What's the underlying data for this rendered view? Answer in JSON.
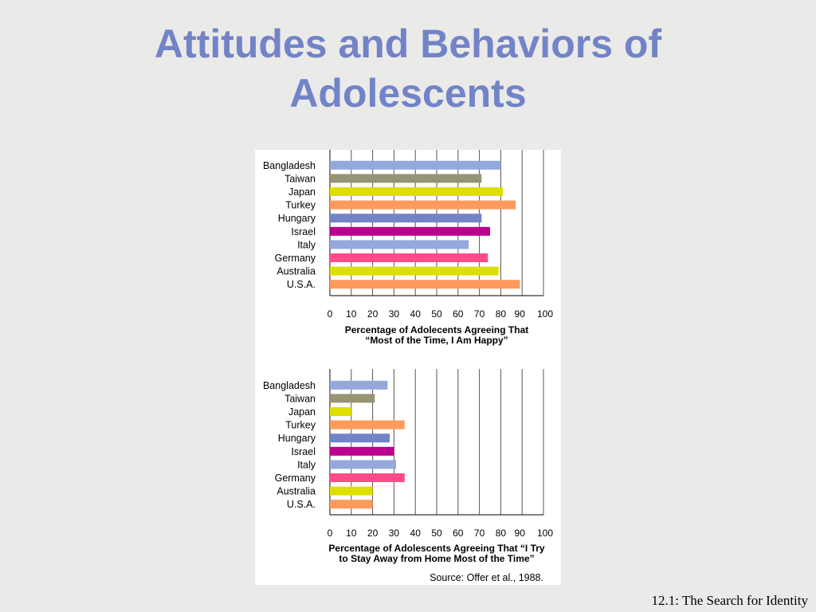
{
  "slide": {
    "title_line1": "Attitudes and Behaviors of",
    "title_line2": "Adolescents",
    "footer": "12.1: The Search for Identity"
  },
  "chart_data": [
    {
      "type": "bar",
      "orientation": "horizontal",
      "categories": [
        "Bangladesh",
        "Taiwan",
        "Japan",
        "Turkey",
        "Hungary",
        "Israel",
        "Italy",
        "Germany",
        "Australia",
        "U.S.A."
      ],
      "values": [
        80,
        71,
        81,
        87,
        71,
        75,
        65,
        74,
        79,
        89
      ],
      "colors": [
        "#94a8db",
        "#969472",
        "#dede00",
        "#ff9a5c",
        "#7283c8",
        "#bb0090",
        "#94a8db",
        "#ff4b8a",
        "#dede00",
        "#ff9a5c"
      ],
      "xlim": [
        0,
        100
      ],
      "xticks": [
        "0",
        "10",
        "20",
        "30",
        "40",
        "50",
        "60",
        "70",
        "80",
        "90",
        "100"
      ],
      "grid": true,
      "xlabel_line1": "Percentage of Adolecents Agreeing That",
      "xlabel_line2": "“Most of the Time, I Am Happy”",
      "source": ""
    },
    {
      "type": "bar",
      "orientation": "horizontal",
      "categories": [
        "Bangladesh",
        "Taiwan",
        "Japan",
        "Turkey",
        "Hungary",
        "Israel",
        "Italy",
        "Germany",
        "Australia",
        "U.S.A."
      ],
      "values": [
        27,
        21,
        10,
        35,
        28,
        30,
        31,
        35,
        20,
        20
      ],
      "colors": [
        "#94a8db",
        "#969472",
        "#dede00",
        "#ff9a5c",
        "#7283c8",
        "#bb0090",
        "#94a8db",
        "#ff4b8a",
        "#dede00",
        "#ff9a5c"
      ],
      "xlim": [
        0,
        100
      ],
      "xticks": [
        "0",
        "10",
        "20",
        "30",
        "40",
        "50",
        "60",
        "70",
        "80",
        "90",
        "100"
      ],
      "grid": true,
      "xlabel_line1": "Percentage of Adolescents Agreeing That “I Try",
      "xlabel_line2": "to Stay Away from Home Most of the Time”",
      "source": "Source: Offer et al., 1988."
    }
  ]
}
